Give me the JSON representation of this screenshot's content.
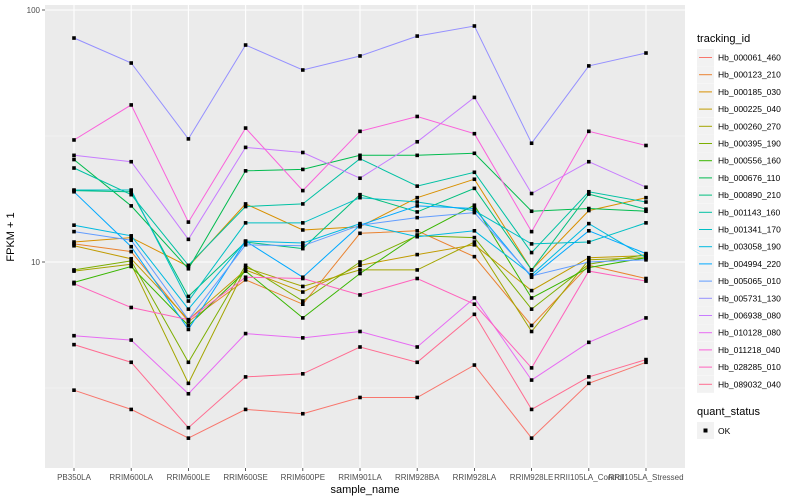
{
  "chart_data": {
    "type": "line",
    "title": "",
    "xlabel": "sample_name",
    "ylabel": "FPKM + 1",
    "yscale": "log10",
    "ylim": [
      1.6,
      110
    ],
    "y_ticks": [
      10,
      100
    ],
    "y_tick_labels": [
      "10",
      "100"
    ],
    "grid": true,
    "legend_position": "right",
    "categories": [
      "PB350LA",
      "RRIM600LA",
      "RRIM600LE",
      "RRIM600SE",
      "RRIM600PE",
      "RRIM901LA",
      "RRIM928BA",
      "RRIM928LA",
      "RRIM928LE",
      "RRII105LA_Control",
      "RRII105LA_Stressed"
    ],
    "color_legend_title": "tracking_id",
    "shape_legend_title": "quant_status",
    "shape_legend_items": [
      "OK"
    ],
    "series": [
      {
        "name": "Hb_000061_460",
        "color": "#F8766D",
        "values": [
          3.1,
          2.6,
          2.0,
          2.6,
          2.5,
          2.9,
          2.9,
          3.9,
          2.0,
          3.3,
          4.0
        ]
      },
      {
        "name": "Hb_000123_210",
        "color": "#EA8331",
        "values": [
          11.8,
          11.0,
          5.8,
          8.5,
          6.8,
          13.0,
          13.3,
          10.5,
          5.6,
          9.7,
          8.6
        ]
      },
      {
        "name": "Hb_000185_030",
        "color": "#D89000",
        "values": [
          12.0,
          12.5,
          9.6,
          17.0,
          13.4,
          13.8,
          18.0,
          21.3,
          9.3,
          16.0,
          18.0
        ]
      },
      {
        "name": "Hb_000225_040",
        "color": "#C09B00",
        "values": [
          11.6,
          10.3,
          5.9,
          9.3,
          7.6,
          9.7,
          10.7,
          11.7,
          7.7,
          10.4,
          10.6
        ]
      },
      {
        "name": "Hb_000260_270",
        "color": "#A3A500",
        "values": [
          9.2,
          9.8,
          3.3,
          9.5,
          8.0,
          9.3,
          9.3,
          12.0,
          5.3,
          10.2,
          10.4
        ]
      },
      {
        "name": "Hb_000395_190",
        "color": "#7CAE00",
        "values": [
          9.3,
          10.1,
          4.0,
          9.7,
          7.0,
          10.0,
          12.7,
          12.5,
          6.5,
          9.8,
          10.7
        ]
      },
      {
        "name": "Hb_000556_160",
        "color": "#39B600",
        "values": [
          8.3,
          9.6,
          5.6,
          9.2,
          6.0,
          9.0,
          12.8,
          16.8,
          7.2,
          9.5,
          10.4
        ]
      },
      {
        "name": "Hb_000676_110",
        "color": "#00BB4E",
        "values": [
          25.5,
          16.7,
          9.4,
          23.0,
          23.3,
          26.5,
          26.5,
          27.0,
          15.9,
          16.3,
          15.9
        ]
      },
      {
        "name": "Hb_000890_210",
        "color": "#00BF7D",
        "values": [
          19.2,
          19.0,
          7.3,
          12.0,
          11.3,
          18.5,
          15.8,
          19.6,
          9.3,
          18.6,
          16.2
        ]
      },
      {
        "name": "Hb_001143_160",
        "color": "#00C1A3",
        "values": [
          23.6,
          18.5,
          9.7,
          16.6,
          17.0,
          25.7,
          20.0,
          22.7,
          10.9,
          19.0,
          17.3
        ]
      },
      {
        "name": "Hb_001341_170",
        "color": "#00BFC4",
        "values": [
          19.3,
          19.3,
          7.0,
          14.3,
          14.3,
          18.0,
          17.3,
          16.0,
          11.8,
          12.0,
          14.3
        ]
      },
      {
        "name": "Hb_003058_190",
        "color": "#00BAE0",
        "values": [
          14.0,
          12.7,
          6.5,
          12.1,
          11.9,
          14.2,
          12.6,
          13.3,
          8.9,
          14.2,
          10.4
        ]
      },
      {
        "name": "Hb_004994_220",
        "color": "#00A9FF",
        "values": [
          19.0,
          11.5,
          5.4,
          12.1,
          8.7,
          14.0,
          16.7,
          16.3,
          8.7,
          13.3,
          10.8
        ]
      },
      {
        "name": "Hb_005065_010",
        "color": "#619CFF",
        "values": [
          13.2,
          12.2,
          5.9,
          11.7,
          11.6,
          14.0,
          15.0,
          15.7,
          8.8,
          10.0,
          10.2
        ]
      },
      {
        "name": "Hb_005731_130",
        "color": "#9590FF",
        "values": [
          77.4,
          61.6,
          30.8,
          72.6,
          57.8,
          65.7,
          78.8,
          86.4,
          29.6,
          60.0,
          67.5
        ]
      },
      {
        "name": "Hb_006938_080",
        "color": "#C77CFF",
        "values": [
          26.5,
          25.0,
          12.3,
          28.5,
          27.2,
          21.5,
          30.0,
          45.0,
          18.7,
          25.0,
          19.8
        ]
      },
      {
        "name": "Hb_010128_080",
        "color": "#E76BF3",
        "values": [
          5.1,
          4.9,
          3.0,
          5.2,
          5.0,
          5.3,
          4.6,
          7.2,
          3.4,
          4.8,
          6.0
        ]
      },
      {
        "name": "Hb_011218_040",
        "color": "#FA62DB",
        "values": [
          30.5,
          42.0,
          14.4,
          34.0,
          19.2,
          33.0,
          37.8,
          32.3,
          13.2,
          33.0,
          29.0
        ]
      },
      {
        "name": "Hb_028285_010",
        "color": "#FF62BC",
        "values": [
          8.2,
          6.6,
          5.9,
          8.7,
          8.6,
          7.4,
          8.6,
          6.8,
          3.8,
          9.2,
          8.4
        ]
      },
      {
        "name": "Hb_089032_040",
        "color": "#FF6C91",
        "values": [
          4.7,
          4.0,
          2.2,
          3.5,
          3.6,
          4.6,
          4.0,
          6.2,
          2.6,
          3.5,
          4.1
        ]
      }
    ]
  }
}
